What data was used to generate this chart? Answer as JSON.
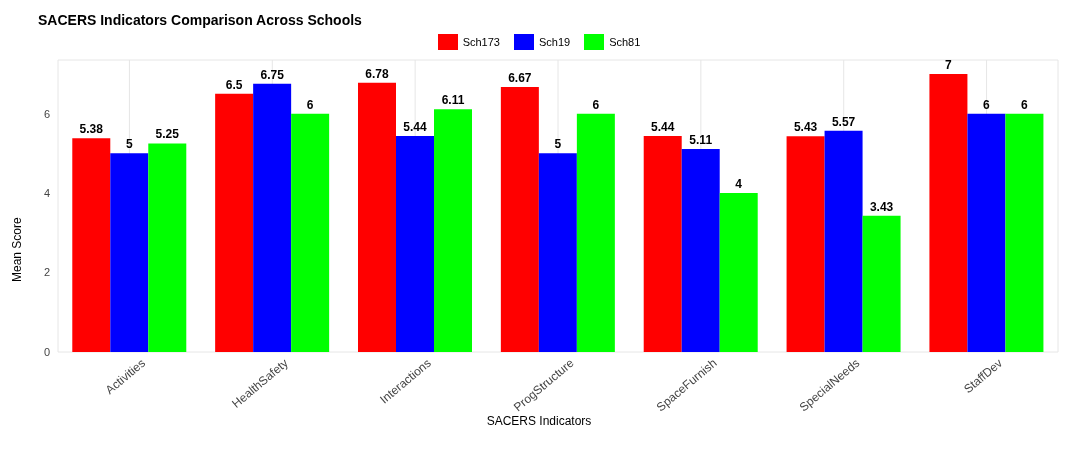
{
  "chart_data": {
    "type": "bar",
    "title": "SACERS Indicators Comparison Across Schools",
    "xlabel": "SACERS Indicators",
    "ylabel": "Mean Score",
    "categories": [
      "Activities",
      "HealthSafety",
      "Interactions",
      "ProgStructure",
      "SpaceFurnish",
      "SpecialNeeds",
      "StaffDev"
    ],
    "series": [
      {
        "name": "Sch173",
        "color": "#ff0000",
        "values": [
          5.38,
          6.5,
          6.78,
          6.67,
          5.44,
          5.43,
          7
        ]
      },
      {
        "name": "Sch19",
        "color": "#0000ff",
        "values": [
          5,
          6.75,
          5.44,
          5,
          5.11,
          5.57,
          6
        ]
      },
      {
        "name": "Sch81",
        "color": "#00ff00",
        "values": [
          5.25,
          6,
          6.11,
          6,
          4,
          3.43,
          6
        ]
      }
    ],
    "ylim": [
      0,
      7.35
    ],
    "yticks": [
      0,
      2,
      4,
      6
    ],
    "grid": true,
    "legend": "top",
    "data_labels": true
  }
}
